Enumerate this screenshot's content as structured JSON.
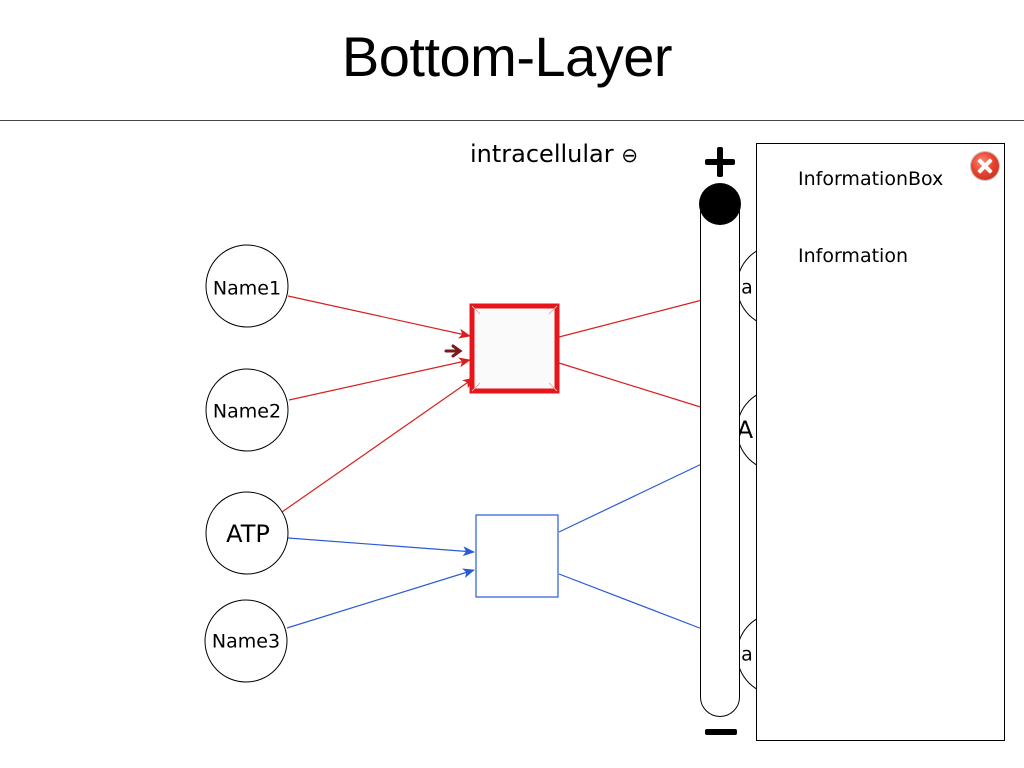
{
  "page": {
    "title": "Bottom-Layer"
  },
  "compartment": {
    "label": "intracellular",
    "toggle_icon": "circle-minus-icon"
  },
  "nodes": {
    "name1": "Name1",
    "name2": "Name2",
    "atp": "ATP",
    "name3": "Name3",
    "right_top_partial": "a",
    "right_mid_partial": "A",
    "right_bottom_partial": "a"
  },
  "reactions": {
    "selected_color": "#e8141a",
    "default_color": "#2a5bd7"
  },
  "edges": {
    "selected_color": "#d62020",
    "default_color": "#2a5bd7"
  },
  "zoom": {
    "plus_icon": "plus-icon",
    "minus_icon": "minus-icon",
    "level": 1.0
  },
  "info_box": {
    "title": "InformationBox",
    "text": "Information",
    "close_icon": "close-icon"
  }
}
